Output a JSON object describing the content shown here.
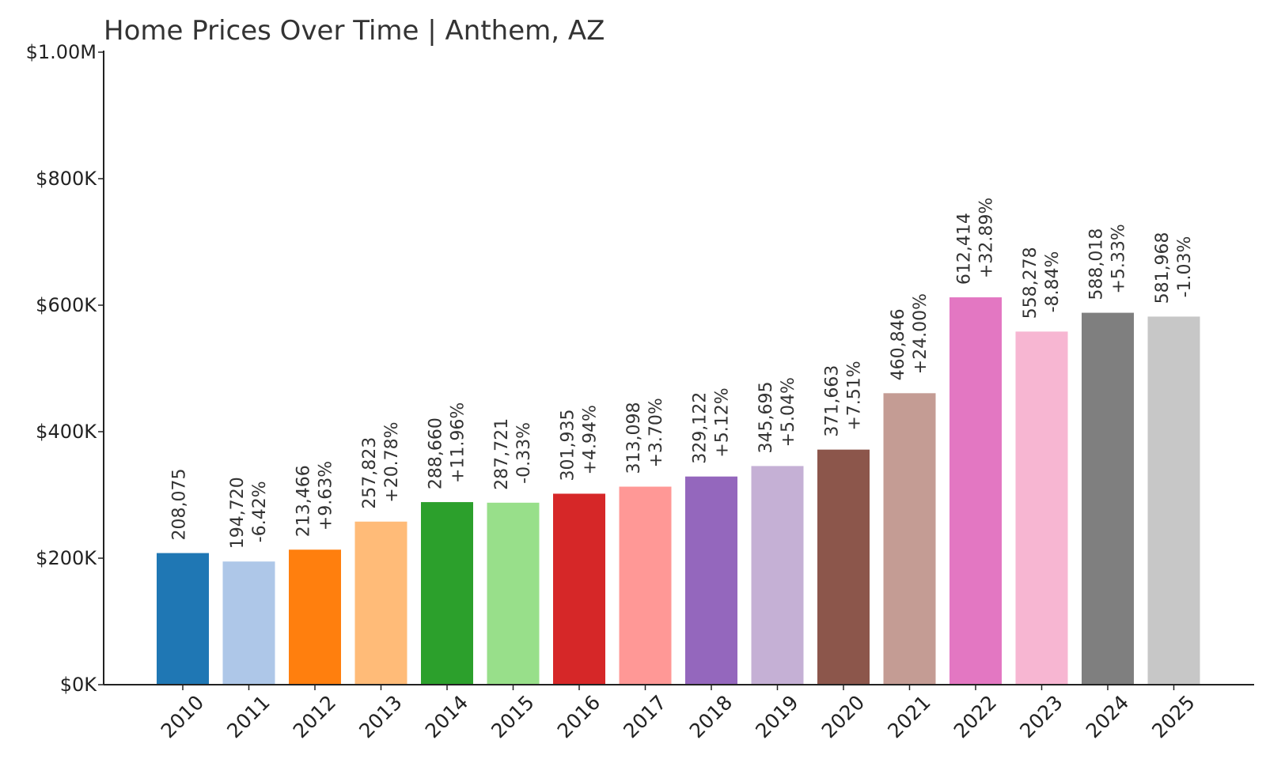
{
  "chart_data": {
    "type": "bar",
    "title": "Home Prices Over Time | Anthem, AZ",
    "xlabel": "",
    "ylabel": "",
    "ylim": [
      0,
      1000000
    ],
    "grid": false,
    "legend": "none",
    "y_ticks": [
      {
        "value": 0,
        "label": "$0K"
      },
      {
        "value": 200000,
        "label": "$200K"
      },
      {
        "value": 400000,
        "label": "$400K"
      },
      {
        "value": 600000,
        "label": "$600K"
      },
      {
        "value": 800000,
        "label": "$800K"
      },
      {
        "value": 1000000,
        "label": "$1.00M"
      }
    ],
    "categories": [
      "2010",
      "2011",
      "2012",
      "2013",
      "2014",
      "2015",
      "2016",
      "2017",
      "2018",
      "2019",
      "2020",
      "2021",
      "2022",
      "2023",
      "2024",
      "2025"
    ],
    "values": [
      208075,
      194720,
      213466,
      257823,
      288660,
      287721,
      301935,
      313098,
      329122,
      345695,
      371663,
      460846,
      612414,
      558278,
      588018,
      581968
    ],
    "value_labels": [
      "208,075",
      "194,720",
      "213,466",
      "257,823",
      "288,660",
      "287,721",
      "301,935",
      "313,098",
      "329,122",
      "345,695",
      "371,663",
      "460,846",
      "612,414",
      "558,278",
      "588,018",
      "581,968"
    ],
    "change_labels": [
      "",
      "-6.42%",
      "+9.63%",
      "+20.78%",
      "+11.96%",
      "-0.33%",
      "+4.94%",
      "+3.70%",
      "+5.12%",
      "+5.04%",
      "+7.51%",
      "+24.00%",
      "+32.89%",
      "-8.84%",
      "+5.33%",
      "-1.03%"
    ],
    "colors": [
      "#1f77b4",
      "#aec7e8",
      "#ff7f0e",
      "#ffbb78",
      "#2ca02c",
      "#98df8a",
      "#d62728",
      "#ff9896",
      "#9467bd",
      "#c5b0d5",
      "#8c564b",
      "#c49c94",
      "#e377c2",
      "#f7b6d2",
      "#7f7f7f",
      "#c7c7c7"
    ]
  }
}
